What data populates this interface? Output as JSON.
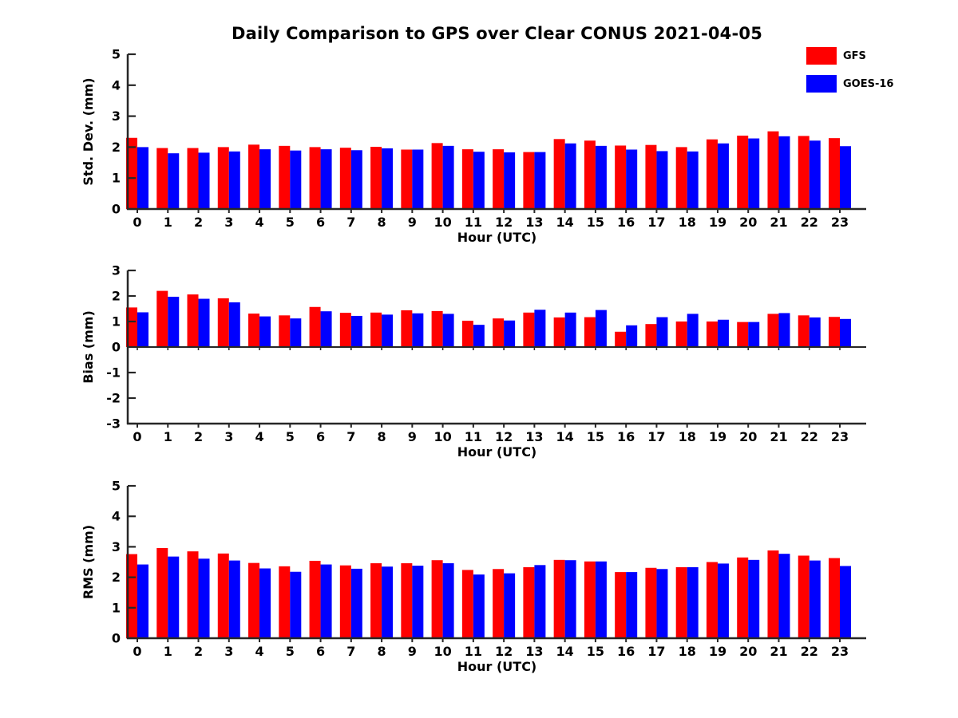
{
  "title": "Daily Comparison to GPS over Clear CONUS 2021-04-05",
  "legend": {
    "items": [
      {
        "label": "GFS",
        "color": "#FF0000"
      },
      {
        "label": "GOES-16",
        "color": "#0000FF"
      }
    ]
  },
  "colors": {
    "gfs": "#FF0000",
    "goes16": "#0000FF",
    "axis": "#262626",
    "text": "#000000"
  },
  "chart_data": [
    {
      "type": "bar",
      "title": "",
      "ylabel": "Std. Dev. (mm)",
      "xlabel": "Hour (UTC)",
      "ylim": [
        0,
        5
      ],
      "yticks": [
        0,
        1,
        2,
        3,
        4,
        5
      ],
      "grid": false,
      "legend_position": "top-right",
      "categories": [
        "0",
        "1",
        "2",
        "3",
        "4",
        "5",
        "6",
        "7",
        "8",
        "9",
        "10",
        "11",
        "12",
        "13",
        "14",
        "15",
        "16",
        "17",
        "18",
        "19",
        "20",
        "21",
        "22",
        "23"
      ],
      "series": [
        {
          "name": "GFS",
          "color": "#FF0000",
          "values": [
            2.3,
            1.97,
            1.97,
            2.0,
            2.08,
            2.04,
            2.0,
            1.98,
            2.01,
            1.92,
            2.13,
            1.93,
            1.93,
            1.84,
            2.26,
            2.21,
            2.05,
            2.07,
            2.0,
            2.25,
            2.37,
            2.51,
            2.36,
            2.29
          ]
        },
        {
          "name": "GOES-16",
          "color": "#0000FF",
          "values": [
            2.0,
            1.8,
            1.82,
            1.86,
            1.93,
            1.89,
            1.93,
            1.9,
            1.96,
            1.92,
            2.04,
            1.85,
            1.83,
            1.84,
            2.12,
            2.04,
            1.92,
            1.87,
            1.86,
            2.12,
            2.28,
            2.35,
            2.21,
            2.03
          ]
        }
      ]
    },
    {
      "type": "bar",
      "title": "",
      "ylabel": "Bias (mm)",
      "xlabel": "Hour (UTC)",
      "ylim": [
        -3,
        3
      ],
      "yticks": [
        -3,
        -2,
        -1,
        0,
        1,
        2,
        3
      ],
      "grid": false,
      "categories": [
        "0",
        "1",
        "2",
        "3",
        "4",
        "5",
        "6",
        "7",
        "8",
        "9",
        "10",
        "11",
        "12",
        "13",
        "14",
        "15",
        "16",
        "17",
        "18",
        "19",
        "20",
        "21",
        "22",
        "23"
      ],
      "series": [
        {
          "name": "GFS",
          "color": "#FF0000",
          "values": [
            1.55,
            2.2,
            2.06,
            1.91,
            1.31,
            1.24,
            1.57,
            1.34,
            1.35,
            1.44,
            1.41,
            1.03,
            1.12,
            1.35,
            1.16,
            1.17,
            0.6,
            0.9,
            1.0,
            1.0,
            0.98,
            1.3,
            1.24,
            1.18
          ]
        },
        {
          "name": "GOES-16",
          "color": "#0000FF",
          "values": [
            1.36,
            1.97,
            1.89,
            1.75,
            1.2,
            1.12,
            1.4,
            1.22,
            1.27,
            1.32,
            1.3,
            0.87,
            1.04,
            1.46,
            1.35,
            1.45,
            0.85,
            1.17,
            1.3,
            1.07,
            0.98,
            1.33,
            1.16,
            1.1
          ]
        }
      ]
    },
    {
      "type": "bar",
      "title": "",
      "ylabel": "RMS (mm)",
      "xlabel": "Hour (UTC)",
      "ylim": [
        0,
        5
      ],
      "yticks": [
        0,
        1,
        2,
        3,
        4,
        5
      ],
      "grid": false,
      "categories": [
        "0",
        "1",
        "2",
        "3",
        "4",
        "5",
        "6",
        "7",
        "8",
        "9",
        "10",
        "11",
        "12",
        "13",
        "14",
        "15",
        "16",
        "17",
        "18",
        "19",
        "20",
        "21",
        "22",
        "23"
      ],
      "series": [
        {
          "name": "GFS",
          "color": "#FF0000",
          "values": [
            2.76,
            2.96,
            2.85,
            2.78,
            2.47,
            2.36,
            2.54,
            2.39,
            2.46,
            2.46,
            2.56,
            2.24,
            2.27,
            2.33,
            2.57,
            2.52,
            2.17,
            2.31,
            2.33,
            2.5,
            2.65,
            2.88,
            2.71,
            2.63
          ]
        },
        {
          "name": "GOES-16",
          "color": "#0000FF",
          "values": [
            2.42,
            2.68,
            2.61,
            2.55,
            2.29,
            2.18,
            2.42,
            2.28,
            2.35,
            2.38,
            2.46,
            2.09,
            2.13,
            2.4,
            2.56,
            2.52,
            2.17,
            2.27,
            2.33,
            2.45,
            2.57,
            2.77,
            2.55,
            2.37
          ]
        }
      ]
    }
  ]
}
